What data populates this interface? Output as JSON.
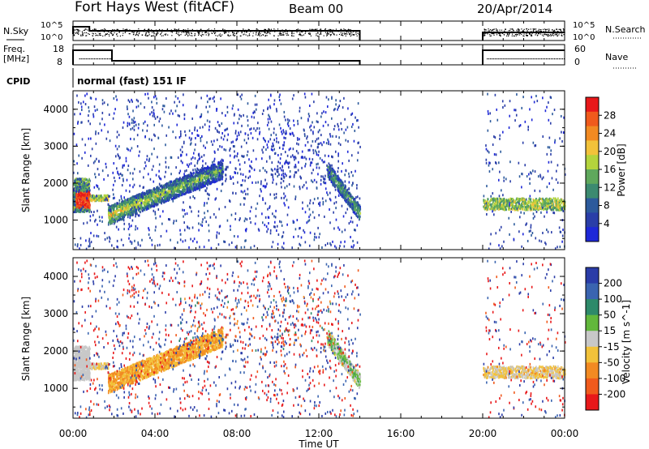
{
  "header": {
    "station": "Fort Hays West (fitACF)",
    "beam": "Beam 00",
    "date": "20/Apr/2014"
  },
  "noise_panel": {
    "left_label": "N.Sky",
    "right_label": "N.Search",
    "left_ticks": [
      "10^5",
      "10^0"
    ],
    "right_ticks": [
      "10^5",
      "10^0"
    ]
  },
  "freq_panel": {
    "left_label_1": "Freq.",
    "left_label_2": "[MHz]",
    "right_label": "Nave",
    "left_ticks": [
      "18",
      "8"
    ],
    "right_ticks": [
      "60",
      "0"
    ]
  },
  "cpid": {
    "label": "CPID",
    "value": "normal (fast) 151 IF"
  },
  "range_ticks": [
    "4000",
    "3000",
    "2000",
    "1000"
  ],
  "x_axis": {
    "label": "Time UT",
    "ticks": [
      "00:00",
      "04:00",
      "08:00",
      "12:00",
      "16:00",
      "20:00",
      "00:00"
    ]
  },
  "chart_data": [
    {
      "type": "heatmap",
      "title": "Power",
      "ylabel": "Slant Range [km]",
      "xlabel": "Time UT",
      "ylim": [
        200,
        4500
      ],
      "xlim_hours": [
        0,
        24
      ],
      "colorbar": {
        "label": "Power [dB]",
        "ticks": [
          "28",
          "24",
          "20",
          "16",
          "12",
          "8",
          "4"
        ],
        "colors": [
          "#e8181a",
          "#f05a1c",
          "#f28a22",
          "#f2c23a",
          "#b4d43c",
          "#5fa85c",
          "#3c8a70",
          "#2c5a9c",
          "#2a3ea8",
          "#1e28d8"
        ]
      },
      "features": [
        {
          "name": "near-range patch",
          "start_h": 0.0,
          "end_h": 0.8,
          "range_km": [
            1250,
            2150
          ],
          "power_db": 28
        },
        {
          "name": "ascending band",
          "start_h": 1.7,
          "end_h": 7.3,
          "range_km_start": 1150,
          "range_km_end": 2400,
          "power_db": 16
        },
        {
          "name": "descending band",
          "start_h": 12.4,
          "end_h": 14.0,
          "range_km_start": 2400,
          "range_km_end": 1200,
          "power_db": 12
        },
        {
          "name": "evening band",
          "start_h": 20.0,
          "end_h": 24.0,
          "range_km": [
            1300,
            1600
          ],
          "power_db": 16
        }
      ],
      "data_gap_hours": [
        14.0,
        20.0
      ]
    },
    {
      "type": "heatmap",
      "title": "Velocity",
      "ylabel": "Slant Range [km]",
      "xlabel": "Time UT",
      "ylim": [
        200,
        4500
      ],
      "xlim_hours": [
        0,
        24
      ],
      "colorbar": {
        "label": "Velocity [m s^-1]",
        "ticks": [
          "200",
          "100",
          "50",
          "15",
          "-15",
          "-50",
          "-100",
          "-200"
        ],
        "colors": [
          "#2a3ca8",
          "#3a64b0",
          "#2e8a6a",
          "#62b83c",
          "#c8c8c8",
          "#f2c23a",
          "#f28a22",
          "#f05a1c",
          "#e8181a"
        ]
      },
      "features": [
        {
          "name": "ground scatter patch",
          "start_h": 0.0,
          "end_h": 0.8,
          "range_km": [
            1250,
            2150
          ],
          "velocity_ms": 0
        },
        {
          "name": "ascending band",
          "start_h": 1.7,
          "end_h": 7.3,
          "range_km_start": 1150,
          "range_km_end": 2400,
          "velocity_ms": -40
        },
        {
          "name": "descending band",
          "start_h": 12.4,
          "end_h": 14.0,
          "range_km_start": 2400,
          "range_km_end": 1200,
          "velocity_ms": 60
        },
        {
          "name": "evening band",
          "start_h": 20.0,
          "end_h": 24.0,
          "range_km": [
            1300,
            1600
          ],
          "velocity_ms": -20
        }
      ],
      "data_gap_hours": [
        14.0,
        20.0
      ]
    }
  ]
}
